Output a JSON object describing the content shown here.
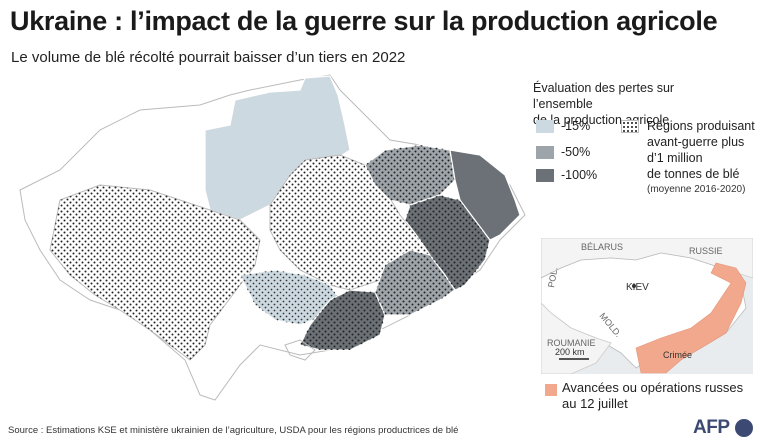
{
  "title": "Ukraine : l’impact de la guerre sur la production agricole",
  "subtitle": "Le volume de blé récolté pourrait baisser d’un tiers en 2022",
  "legend": {
    "title_line1": "Évaluation des pertes sur l’ensemble",
    "title_line2": "de la production agricole",
    "items": [
      {
        "label": "-15%",
        "color": "#cdd9e0"
      },
      {
        "label": "-50%",
        "color": "#9ea5aa"
      },
      {
        "label": "-100%",
        "color": "#6b7176"
      }
    ],
    "production": {
      "line1": "Régions produisant",
      "line2": "avant-guerre plus",
      "line3": "d’1 million",
      "line4": "de tonnes de blé",
      "note": "(moyenne 2016-2020)"
    }
  },
  "inset": {
    "labels": {
      "belarus": "BÉLARUS",
      "russie": "RUSSIE",
      "pol": "POL.",
      "kiev": "KIEV",
      "mold": "MOLD.",
      "roumanie": "ROUMANIE",
      "crimee": "Crimée",
      "scale": "200 km"
    },
    "advance_label_line1": "Avancées ou opérations russes",
    "advance_label_line2": "au 12 juillet",
    "advance_color": "#f2a88d"
  },
  "source": "Source : Estimations KSE et ministère ukrainien de l’agriculture, USDA pour les régions productrices de blé",
  "logo": "AFP",
  "colors": {
    "light": "#cdd9e0",
    "medium": "#9ea5aa",
    "dark": "#6b7176",
    "border": "#bbbbbb",
    "sea": "#dfe7ee"
  }
}
